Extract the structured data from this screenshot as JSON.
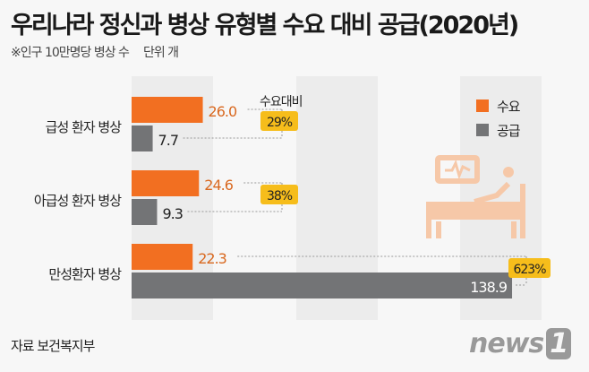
{
  "title": "우리나라 정신과 병상 유형별 수요 대비 공급(2020년)",
  "subtitle": "※인구 10만명당 병상 수",
  "unit": "단위  개",
  "source": "자료  보건복지부",
  "logo": "news1",
  "chart_data": {
    "type": "bar",
    "orientation": "horizontal",
    "categories": [
      "급성 환자 병상",
      "아급성 환자 병상",
      "만성환자 병상"
    ],
    "series": [
      {
        "name": "수요",
        "color": "#f26f21",
        "values": [
          26.0,
          24.6,
          22.3
        ]
      },
      {
        "name": "공급",
        "color": "#737476",
        "values": [
          7.7,
          9.3,
          138.9
        ]
      }
    ],
    "ratio_label": "수요대비",
    "ratios": [
      "29%",
      "38%",
      "623%"
    ],
    "ratio_color": "#f6bd1b",
    "legend": "top-right",
    "icon": "hospital-bed-patient-icon"
  }
}
